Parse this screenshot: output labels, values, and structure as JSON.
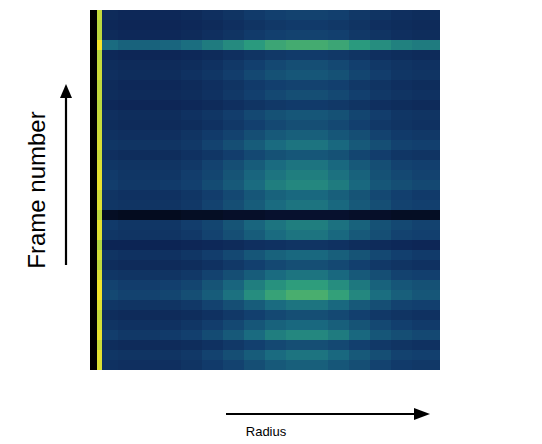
{
  "chart_data": {
    "type": "heatmap",
    "x_label": "Radius",
    "y_label": "Frame number",
    "x": [
      0,
      2,
      3.5,
      8,
      14,
      20,
      26,
      32,
      38,
      44,
      50,
      56,
      62,
      68,
      74,
      80,
      86,
      92,
      100
    ],
    "xlim": [
      0,
      100
    ],
    "ylim": [
      0,
      36
    ],
    "tick_labels": false,
    "cell_range": [
      0,
      1
    ],
    "cells": [
      [
        0,
        0.95,
        0.24,
        0.23,
        0.23,
        0.23,
        0.25,
        0.28,
        0.31,
        0.35,
        0.39,
        0.41,
        0.41,
        0.38,
        0.35,
        0.31,
        0.28,
        0.27
      ],
      [
        0,
        0.97,
        0.26,
        0.25,
        0.25,
        0.25,
        0.27,
        0.31,
        0.35,
        0.4,
        0.45,
        0.48,
        0.48,
        0.44,
        0.39,
        0.35,
        0.31,
        0.3
      ],
      [
        0,
        0.92,
        0.22,
        0.21,
        0.21,
        0.21,
        0.22,
        0.24,
        0.27,
        0.3,
        0.33,
        0.35,
        0.35,
        0.33,
        0.3,
        0.27,
        0.25,
        0.24
      ],
      [
        0,
        0.98,
        0.29,
        0.27,
        0.27,
        0.28,
        0.3,
        0.34,
        0.39,
        0.45,
        0.51,
        0.54,
        0.54,
        0.5,
        0.44,
        0.38,
        0.35,
        0.33
      ],
      [
        0,
        0.94,
        0.25,
        0.24,
        0.24,
        0.24,
        0.26,
        0.29,
        0.33,
        0.38,
        0.42,
        0.44,
        0.44,
        0.41,
        0.37,
        0.33,
        0.3,
        0.28
      ],
      [
        0,
        0.91,
        0.22,
        0.21,
        0.21,
        0.21,
        0.22,
        0.24,
        0.27,
        0.3,
        0.33,
        0.35,
        0.35,
        0.33,
        0.3,
        0.27,
        0.25,
        0.24
      ],
      [
        0,
        0.96,
        0.26,
        0.25,
        0.25,
        0.25,
        0.27,
        0.31,
        0.35,
        0.4,
        0.45,
        0.48,
        0.48,
        0.44,
        0.39,
        0.35,
        0.31,
        0.3
      ],
      [
        0,
        1.0,
        0.33,
        0.31,
        0.31,
        0.32,
        0.35,
        0.4,
        0.47,
        0.56,
        0.63,
        0.67,
        0.67,
        0.62,
        0.54,
        0.46,
        0.41,
        0.38
      ],
      [
        0,
        0.99,
        0.31,
        0.29,
        0.29,
        0.3,
        0.32,
        0.37,
        0.43,
        0.51,
        0.57,
        0.61,
        0.61,
        0.56,
        0.49,
        0.42,
        0.38,
        0.36
      ],
      [
        0,
        0.95,
        0.26,
        0.25,
        0.25,
        0.25,
        0.27,
        0.31,
        0.35,
        0.4,
        0.45,
        0.48,
        0.48,
        0.44,
        0.39,
        0.35,
        0.31,
        0.3
      ],
      [
        0,
        0.9,
        0.22,
        0.21,
        0.21,
        0.21,
        0.22,
        0.24,
        0.27,
        0.3,
        0.33,
        0.35,
        0.35,
        0.33,
        0.3,
        0.27,
        0.25,
        0.24
      ],
      [
        0,
        0.94,
        0.25,
        0.24,
        0.24,
        0.24,
        0.26,
        0.29,
        0.33,
        0.38,
        0.42,
        0.44,
        0.44,
        0.41,
        0.37,
        0.33,
        0.3,
        0.28
      ],
      [
        0,
        0.88,
        0.18,
        0.18,
        0.18,
        0.18,
        0.19,
        0.2,
        0.21,
        0.23,
        0.24,
        0.25,
        0.25,
        0.24,
        0.22,
        0.21,
        0.2,
        0.19
      ],
      [
        0,
        0.96,
        0.26,
        0.25,
        0.25,
        0.25,
        0.27,
        0.31,
        0.35,
        0.4,
        0.45,
        0.48,
        0.48,
        0.44,
        0.39,
        0.35,
        0.31,
        0.3
      ],
      [
        0,
        0.97,
        0.28,
        0.26,
        0.26,
        0.26,
        0.29,
        0.32,
        0.37,
        0.43,
        0.48,
        0.51,
        0.51,
        0.47,
        0.42,
        0.36,
        0.33,
        0.31
      ],
      [
        0,
        0.9,
        0.07,
        0.06,
        0.06,
        0.06,
        0.07,
        0.07,
        0.08,
        0.08,
        0.09,
        0.09,
        0.09,
        0.09,
        0.08,
        0.08,
        0.07,
        0.07
      ],
      [
        0,
        0.96,
        0.26,
        0.25,
        0.25,
        0.25,
        0.27,
        0.31,
        0.35,
        0.4,
        0.45,
        0.48,
        0.48,
        0.44,
        0.39,
        0.35,
        0.31,
        0.3
      ],
      [
        0,
        0.93,
        0.25,
        0.24,
        0.24,
        0.24,
        0.26,
        0.29,
        0.33,
        0.38,
        0.42,
        0.44,
        0.44,
        0.41,
        0.37,
        0.33,
        0.3,
        0.28
      ],
      [
        0,
        0.98,
        0.29,
        0.27,
        0.27,
        0.28,
        0.3,
        0.34,
        0.39,
        0.45,
        0.51,
        0.54,
        0.54,
        0.5,
        0.44,
        0.38,
        0.35,
        0.33
      ],
      [
        0,
        0.97,
        0.28,
        0.26,
        0.26,
        0.26,
        0.29,
        0.32,
        0.37,
        0.43,
        0.48,
        0.51,
        0.51,
        0.47,
        0.42,
        0.36,
        0.33,
        0.31
      ],
      [
        0,
        0.95,
        0.26,
        0.25,
        0.25,
        0.25,
        0.27,
        0.31,
        0.35,
        0.4,
        0.45,
        0.48,
        0.48,
        0.44,
        0.39,
        0.35,
        0.31,
        0.3
      ],
      [
        0,
        0.92,
        0.23,
        0.22,
        0.22,
        0.22,
        0.24,
        0.26,
        0.29,
        0.33,
        0.36,
        0.38,
        0.38,
        0.36,
        0.32,
        0.29,
        0.26,
        0.25
      ],
      [
        0,
        0.95,
        0.26,
        0.25,
        0.25,
        0.25,
        0.27,
        0.31,
        0.35,
        0.4,
        0.45,
        0.48,
        0.48,
        0.44,
        0.39,
        0.35,
        0.31,
        0.3
      ],
      [
        0,
        0.93,
        0.24,
        0.23,
        0.23,
        0.23,
        0.25,
        0.28,
        0.31,
        0.35,
        0.39,
        0.41,
        0.41,
        0.38,
        0.35,
        0.31,
        0.28,
        0.27
      ],
      [
        0,
        0.91,
        0.22,
        0.21,
        0.21,
        0.21,
        0.22,
        0.24,
        0.27,
        0.3,
        0.33,
        0.35,
        0.35,
        0.33,
        0.3,
        0.27,
        0.25,
        0.24
      ],
      [
        0,
        0.92,
        0.23,
        0.22,
        0.22,
        0.22,
        0.24,
        0.26,
        0.29,
        0.33,
        0.36,
        0.38,
        0.38,
        0.36,
        0.32,
        0.29,
        0.26,
        0.25
      ],
      [
        0,
        0.89,
        0.2,
        0.19,
        0.19,
        0.19,
        0.2,
        0.21,
        0.23,
        0.25,
        0.27,
        0.28,
        0.28,
        0.27,
        0.25,
        0.23,
        0.22,
        0.21
      ],
      [
        0,
        0.91,
        0.22,
        0.21,
        0.21,
        0.21,
        0.22,
        0.24,
        0.27,
        0.3,
        0.33,
        0.35,
        0.35,
        0.33,
        0.3,
        0.27,
        0.25,
        0.24
      ],
      [
        0,
        0.9,
        0.21,
        0.2,
        0.2,
        0.2,
        0.21,
        0.23,
        0.25,
        0.28,
        0.3,
        0.31,
        0.31,
        0.3,
        0.27,
        0.25,
        0.23,
        0.22
      ],
      [
        0,
        0.93,
        0.23,
        0.22,
        0.22,
        0.22,
        0.24,
        0.26,
        0.29,
        0.33,
        0.36,
        0.38,
        0.38,
        0.36,
        0.32,
        0.29,
        0.26,
        0.25
      ],
      [
        0,
        0.91,
        0.22,
        0.21,
        0.21,
        0.21,
        0.22,
        0.24,
        0.27,
        0.3,
        0.33,
        0.35,
        0.35,
        0.33,
        0.3,
        0.27,
        0.25,
        0.24
      ],
      [
        0,
        0.89,
        0.2,
        0.19,
        0.19,
        0.19,
        0.2,
        0.21,
        0.23,
        0.25,
        0.27,
        0.28,
        0.28,
        0.27,
        0.25,
        0.23,
        0.22,
        0.21
      ],
      [
        0,
        1.0,
        0.45,
        0.42,
        0.42,
        0.43,
        0.46,
        0.5,
        0.55,
        0.6,
        0.64,
        0.66,
        0.66,
        0.64,
        0.6,
        0.56,
        0.52,
        0.5
      ],
      [
        0,
        0.9,
        0.21,
        0.2,
        0.2,
        0.2,
        0.21,
        0.23,
        0.25,
        0.28,
        0.3,
        0.31,
        0.31,
        0.3,
        0.27,
        0.25,
        0.23,
        0.22
      ],
      [
        0,
        0.89,
        0.2,
        0.19,
        0.19,
        0.19,
        0.2,
        0.21,
        0.23,
        0.25,
        0.27,
        0.28,
        0.28,
        0.27,
        0.25,
        0.23,
        0.22,
        0.21
      ],
      [
        0,
        0.91,
        0.21,
        0.2,
        0.2,
        0.2,
        0.21,
        0.23,
        0.25,
        0.28,
        0.3,
        0.31,
        0.31,
        0.3,
        0.27,
        0.25,
        0.23,
        0.22
      ]
    ]
  }
}
